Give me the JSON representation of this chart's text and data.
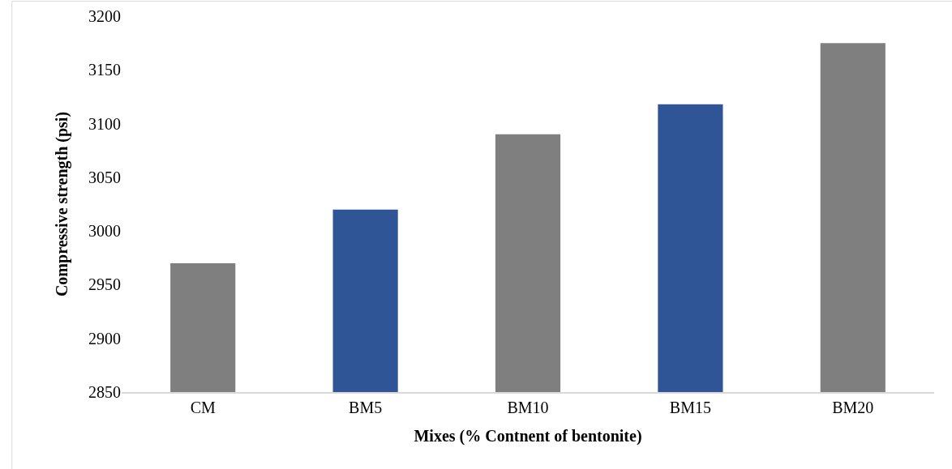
{
  "chart_data": {
    "type": "bar",
    "xlabel": "Mixes (% Contnent of bentonite)",
    "ylabel": "Compressive strength (psi)",
    "categories": [
      "CM",
      "BM5",
      "BM10",
      "BM15",
      "BM20"
    ],
    "values": [
      2970,
      3020,
      3090,
      3118,
      3175
    ],
    "colors": [
      "#7f7f7f",
      "#2f5597",
      "#7f7f7f",
      "#2f5597",
      "#7f7f7f"
    ],
    "ylim": [
      2850,
      3200
    ],
    "yticks": [
      2850,
      2900,
      2950,
      3000,
      3050,
      3100,
      3150,
      3200
    ],
    "grid": false
  }
}
